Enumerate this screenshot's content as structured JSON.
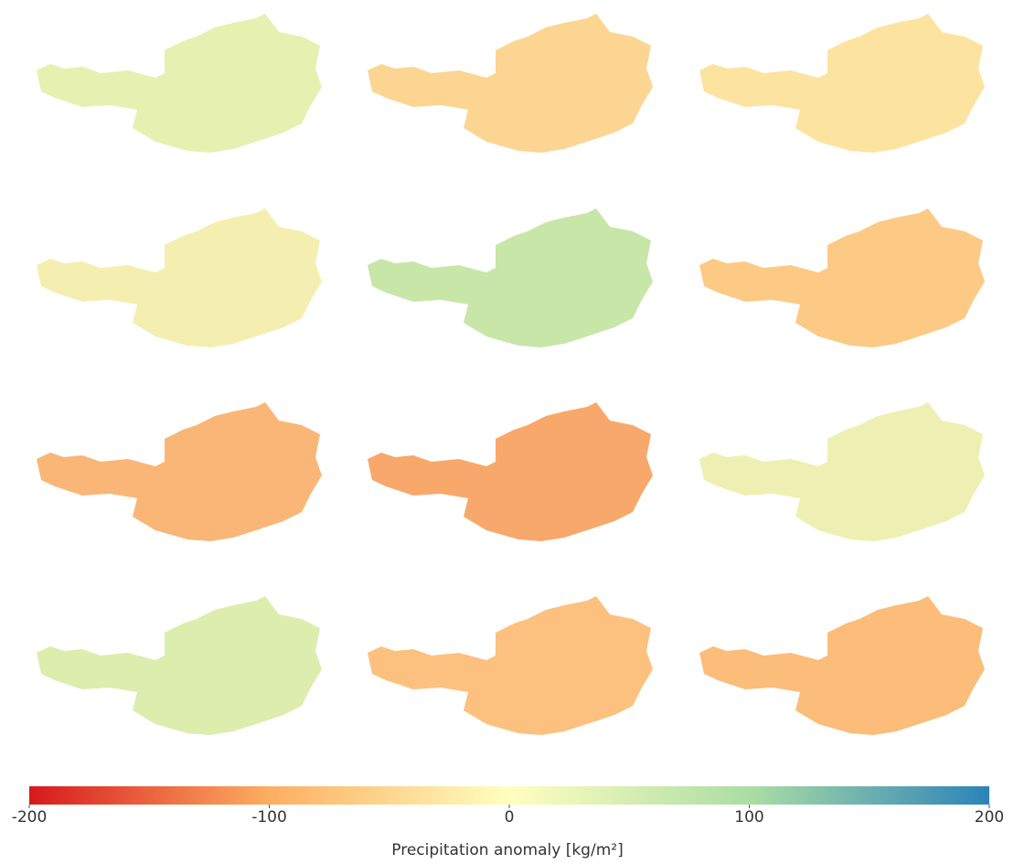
{
  "colorbar": {
    "label": "Precipitation anomaly [kg/m²]",
    "lim": [
      -200,
      200
    ],
    "ticks": [
      -200,
      -100,
      0,
      100,
      200
    ],
    "colors": [
      "#d7191c",
      "#fdae61",
      "#ffffbf",
      "#abdda4",
      "#2b83ba"
    ]
  }
}
